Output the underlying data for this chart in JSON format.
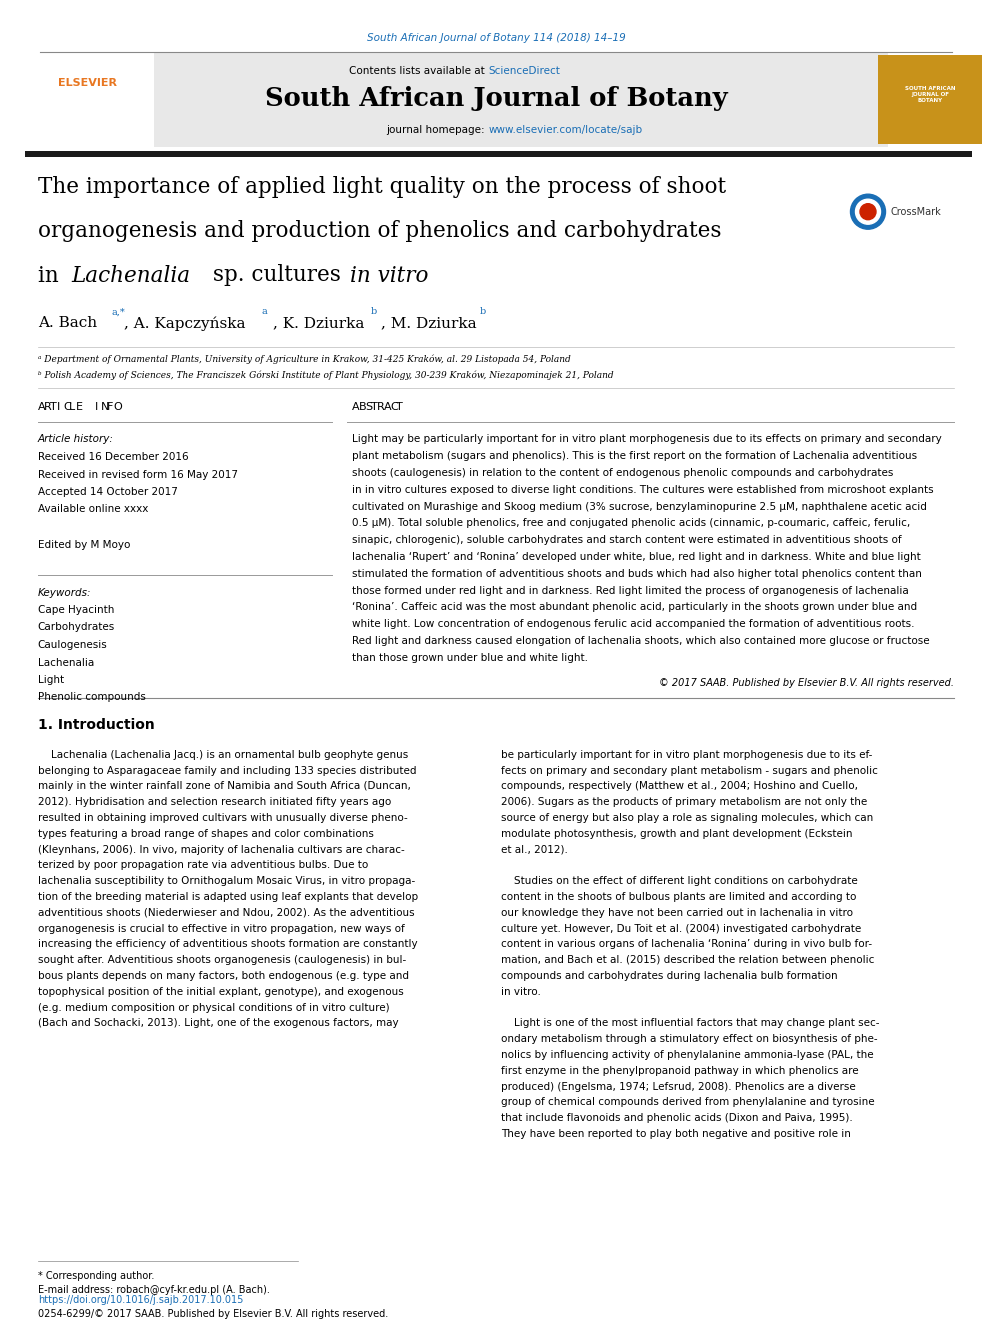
{
  "page_width": 9.92,
  "page_height": 13.23,
  "bg_color": "#ffffff",
  "top_citation": "South African Journal of Botany 114 (2018) 14–19",
  "top_citation_color": "#1a6eb5",
  "journal_name": "South African Journal of Botany",
  "contents_text": "Contents lists available at",
  "sciencedirect_text": "ScienceDirect",
  "sciencedirect_color": "#1a6eb5",
  "journal_homepage_text": "journal homepage: ",
  "journal_url": "www.elsevier.com/locate/sajb",
  "journal_url_color": "#1a6eb5",
  "header_bg": "#e8e8e8",
  "article_title_line1": "The importance of applied light quality on the process of shoot",
  "article_title_line2": "organogenesis and production of phenolics and carbohydrates",
  "affil_a": "ᵃ Department of Ornamental Plants, University of Agriculture in Krakow, 31-425 Kraków, al. 29 Listopada 54, Poland",
  "affil_b": "ᵇ Polish Academy of Sciences, The Franciszek Górski Institute of Plant Physiology, 30-239 Kraków, Niezapominajek 21, Poland",
  "article_info_header": "ARTICLE  INFO",
  "abstract_header": "ABSTRACT",
  "article_history_label": "Article history:",
  "received1": "Received 16 December 2016",
  "received2": "Received in revised form 16 May 2017",
  "accepted": "Accepted 14 October 2017",
  "available": "Available online xxxx",
  "edited_by": "Edited by M Moyo",
  "keywords_label": "Keywords:",
  "keywords": [
    "Cape Hyacinth",
    "Carbohydrates",
    "Caulogenesis",
    "Lachenalia",
    "Light",
    "Phenolic compounds"
  ],
  "copyright": "© 2017 SAAB. Published by Elsevier B.V. All rights reserved.",
  "intro_header": "1. Introduction",
  "footnote_star": "* Corresponding author.",
  "footnote_email": "E-mail address: robach@cyf-kr.edu.pl (A. Bach).",
  "doi_text": "https://doi.org/10.1016/j.sajb.2017.10.015",
  "issn_text": "0254-6299/© 2017 SAAB. Published by Elsevier B.V. All rights reserved.",
  "elsevier_color": "#e87722",
  "link_color": "#1a6eb5",
  "black": "#000000",
  "dark_gray": "#333333",
  "dark_bar_color": "#1a1a1a",
  "abstract_lines": [
    "Light may be particularly important for in vitro plant morphogenesis due to its effects on primary and secondary",
    "plant metabolism (sugars and phenolics). This is the first report on the formation of Lachenalia adventitious",
    "shoots (caulogenesis) in relation to the content of endogenous phenolic compounds and carbohydrates",
    "in in vitro cultures exposed to diverse light conditions. The cultures were established from microshoot explants",
    "cultivated on Murashige and Skoog medium (3% sucrose, benzylaminopurine 2.5 μM, naphthalene acetic acid",
    "0.5 μM). Total soluble phenolics, free and conjugated phenolic acids (cinnamic, p-coumaric, caffeic, ferulic,",
    "sinapic, chlorogenic), soluble carbohydrates and starch content were estimated in adventitious shoots of",
    "lachenalia ‘Rupert’ and ‘Ronina’ developed under white, blue, red light and in darkness. White and blue light",
    "stimulated the formation of adventitious shoots and buds which had also higher total phenolics content than",
    "those formed under red light and in darkness. Red light limited the process of organogenesis of lachenalia",
    "‘Ronina’. Caffeic acid was the most abundant phenolic acid, particularly in the shoots grown under blue and",
    "white light. Low concentration of endogenous ferulic acid accompanied the formation of adventitious roots.",
    "Red light and darkness caused elongation of lachenalia shoots, which also contained more glucose or fructose",
    "than those grown under blue and white light."
  ],
  "intro1_lines": [
    "    Lachenalia (Lachenalia Jacq.) is an ornamental bulb geophyte genus",
    "belonging to Asparagaceae family and including 133 species distributed",
    "mainly in the winter rainfall zone of Namibia and South Africa (Duncan,",
    "2012). Hybridisation and selection research initiated fifty years ago",
    "resulted in obtaining improved cultivars with unusually diverse pheno-",
    "types featuring a broad range of shapes and color combinations",
    "(Kleynhans, 2006). In vivo, majority of lachenalia cultivars are charac-",
    "terized by poor propagation rate via adventitious bulbs. Due to",
    "lachenalia susceptibility to Ornithogalum Mosaic Virus, in vitro propaga-",
    "tion of the breeding material is adapted using leaf explants that develop",
    "adventitious shoots (Niederwieser and Ndou, 2002). As the adventitious",
    "organogenesis is crucial to effective in vitro propagation, new ways of",
    "increasing the efficiency of adventitious shoots formation are constantly",
    "sought after. Adventitious shoots organogenesis (caulogenesis) in bul-",
    "bous plants depends on many factors, both endogenous (e.g. type and",
    "topophysical position of the initial explant, genotype), and exogenous",
    "(e.g. medium composition or physical conditions of in vitro culture)",
    "(Bach and Sochacki, 2013). Light, one of the exogenous factors, may"
  ],
  "intro2_lines": [
    "be particularly important for in vitro plant morphogenesis due to its ef-",
    "fects on primary and secondary plant metabolism - sugars and phenolic",
    "compounds, respectively (Matthew et al., 2004; Hoshino and Cuello,",
    "2006). Sugars as the products of primary metabolism are not only the",
    "source of energy but also play a role as signaling molecules, which can",
    "modulate photosynthesis, growth and plant development (Eckstein",
    "et al., 2012).",
    "",
    "    Studies on the effect of different light conditions on carbohydrate",
    "content in the shoots of bulbous plants are limited and according to",
    "our knowledge they have not been carried out in lachenalia in vitro",
    "culture yet. However, Du Toit et al. (2004) investigated carbohydrate",
    "content in various organs of lachenalia ‘Ronina’ during in vivo bulb for-",
    "mation, and Bach et al. (2015) described the relation between phenolic",
    "compounds and carbohydrates during lachenalia bulb formation",
    "in vitro.",
    "",
    "    Light is one of the most influential factors that may change plant sec-",
    "ondary metabolism through a stimulatory effect on biosynthesis of phe-",
    "nolics by influencing activity of phenylalanine ammonia-lyase (PAL, the",
    "first enzyme in the phenylpropanoid pathway in which phenolics are",
    "produced) (Engelsma, 1974; Lefsrud, 2008). Phenolics are a diverse",
    "group of chemical compounds derived from phenylalanine and tyrosine",
    "that include flavonoids and phenolic acids (Dixon and Paiva, 1995).",
    "They have been reported to play both negative and positive role in"
  ]
}
